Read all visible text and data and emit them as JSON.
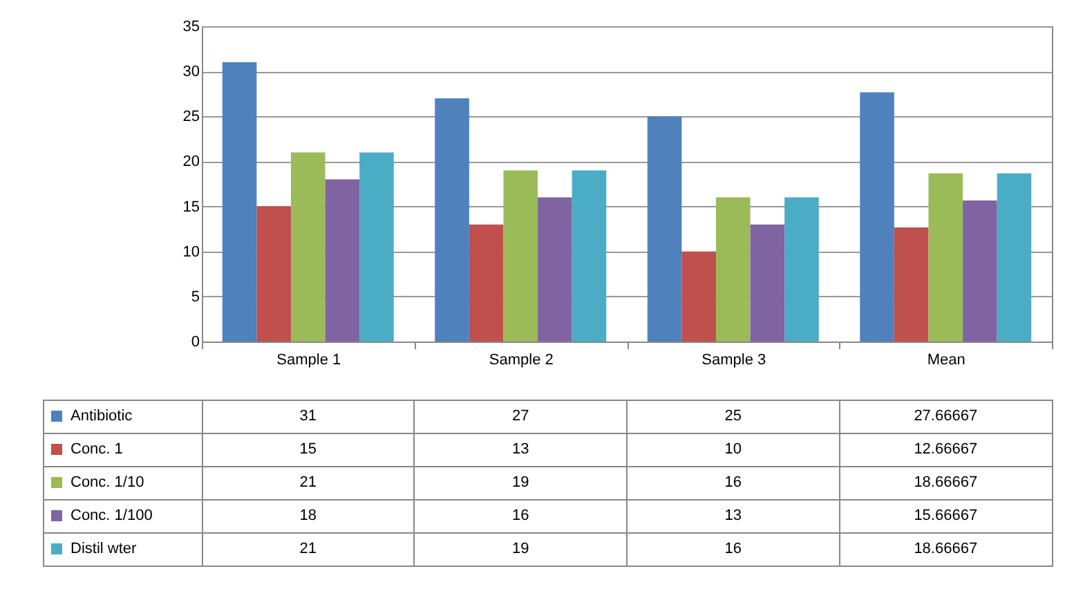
{
  "chart_data": {
    "type": "bar",
    "categories": [
      "Sample 1",
      "Sample 2",
      "Sample 3",
      "Mean"
    ],
    "series": [
      {
        "name": "Antibiotic",
        "color": "#4f81bd",
        "values": [
          31,
          27,
          25,
          27.66667
        ]
      },
      {
        "name": "Conc. 1",
        "color": "#c0504d",
        "values": [
          15,
          13,
          10,
          12.66667
        ]
      },
      {
        "name": "Conc. 1/10",
        "color": "#9bbb59",
        "values": [
          21,
          19,
          16,
          18.66667
        ]
      },
      {
        "name": "Conc. 1/100",
        "color": "#8064a2",
        "values": [
          18,
          16,
          13,
          15.66667
        ]
      },
      {
        "name": "Distil wter",
        "color": "#4bacc6",
        "values": [
          21,
          19,
          16,
          18.66667
        ]
      }
    ],
    "ylim": [
      0,
      35
    ],
    "yticks": [
      0,
      5,
      10,
      15,
      20,
      25,
      30,
      35
    ],
    "grid": "y",
    "legend": "bottom",
    "data_labels": true
  }
}
